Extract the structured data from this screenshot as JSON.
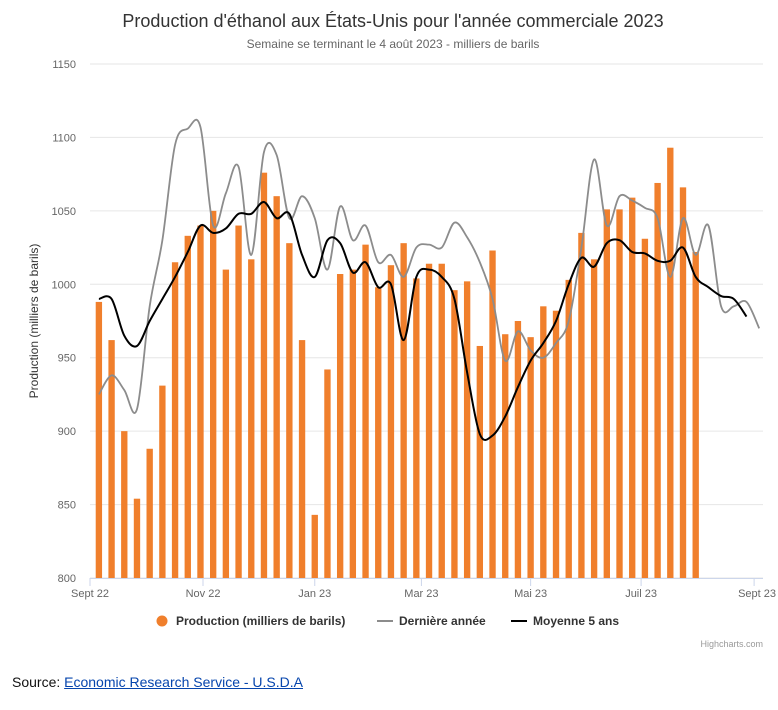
{
  "chart_data": {
    "type": "bar",
    "title": "Production d'éthanol aux États-Unis pour l'année commerciale 2023",
    "subtitle": "Semaine se terminant le 4 août 2023 - milliers de barils",
    "ylabel": "Production (milliers de barils)",
    "ylim": [
      800,
      1150
    ],
    "yticks": [
      800,
      850,
      900,
      950,
      1000,
      1050,
      1100,
      1150
    ],
    "xlim": [
      0,
      53
    ],
    "x_tick_labels": [
      {
        "label": "Sept 22",
        "x": 0
      },
      {
        "label": "Nov 22",
        "x": 8.9
      },
      {
        "label": "Jan 23",
        "x": 17.7
      },
      {
        "label": "Mar 23",
        "x": 26.1
      },
      {
        "label": "Mai 23",
        "x": 34.7
      },
      {
        "label": "Juil 23",
        "x": 43.4
      },
      {
        "label": "Sept 23",
        "x": 52.3
      }
    ],
    "grid": true,
    "legend_position": "bottom",
    "credits": "Highcharts.com",
    "series": [
      {
        "name": "Production (milliers de barils)",
        "type": "column",
        "color": "#f07f2c",
        "x_start": 0.7,
        "values": [
          988,
          962,
          900,
          854,
          888,
          931,
          1015,
          1033,
          1040,
          1050,
          1010,
          1040,
          1017,
          1076,
          1060,
          1028,
          962,
          843,
          942,
          1007,
          1010,
          1027,
          998,
          1013,
          1028,
          1004,
          1014,
          1014,
          996,
          1002,
          958,
          1023,
          966,
          975,
          964,
          985,
          982,
          1003,
          1035,
          1017,
          1051,
          1051,
          1059,
          1031,
          1069,
          1093,
          1066,
          1022
        ]
      },
      {
        "name": "Dernière année",
        "type": "line",
        "color": "#8c8c8c",
        "x_start": 0.7,
        "values": [
          925,
          938,
          928,
          915,
          985,
          1030,
          1095,
          1106,
          1107,
          1040,
          1062,
          1080,
          1020,
          1090,
          1088,
          1045,
          1060,
          1045,
          1010,
          1053,
          1030,
          1040,
          1015,
          1020,
          1005,
          1025,
          1027,
          1025,
          1042,
          1032,
          1015,
          990,
          948,
          968,
          955,
          950,
          960,
          975,
          1025,
          1085,
          1040,
          1060,
          1057,
          1052,
          1045,
          1005,
          1045,
          1020,
          1040,
          985,
          985,
          988,
          970
        ]
      },
      {
        "name": "Moyenne 5 ans",
        "type": "line",
        "color": "#000000",
        "x_start": 0.7,
        "values": [
          990,
          990,
          965,
          958,
          975,
          990,
          1005,
          1022,
          1040,
          1035,
          1038,
          1048,
          1048,
          1056,
          1045,
          1048,
          1020,
          1005,
          1030,
          1028,
          1008,
          1015,
          998,
          1000,
          962,
          1005,
          1010,
          1005,
          990,
          940,
          898,
          897,
          910,
          930,
          948,
          960,
          975,
          1000,
          1018,
          1012,
          1028,
          1030,
          1022,
          1021,
          1016,
          1016,
          1025,
          1005,
          998,
          992,
          990,
          978
        ]
      }
    ]
  },
  "source": {
    "prefix": "Source: ",
    "link_text": "Economic Research Service - U.S.D.A"
  }
}
